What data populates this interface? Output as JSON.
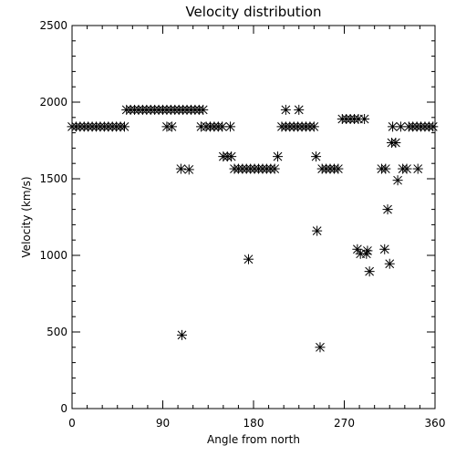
{
  "chart_data": {
    "type": "scatter",
    "title": "Velocity distribution",
    "xlabel": "Angle from north",
    "ylabel": "Velocity (km/s)",
    "xlim": [
      0,
      360
    ],
    "ylim": [
      0,
      2500
    ],
    "x_ticks": [
      0,
      90,
      180,
      270,
      360
    ],
    "y_ticks": [
      0,
      500,
      1000,
      1500,
      2000,
      2500
    ],
    "x_minor_step": 15,
    "y_minor_step": 100,
    "grid": false,
    "marker": "asterisk",
    "marker_color": "#000000",
    "axis_color": "#000000",
    "background_color": "#ffffff",
    "series": [
      {
        "points": [
          {
            "x": 0,
            "y": 1840
          },
          {
            "x": 4,
            "y": 1840
          },
          {
            "x": 8,
            "y": 1840
          },
          {
            "x": 12,
            "y": 1840
          },
          {
            "x": 16,
            "y": 1840
          },
          {
            "x": 20,
            "y": 1840
          },
          {
            "x": 24,
            "y": 1840
          },
          {
            "x": 28,
            "y": 1840
          },
          {
            "x": 32,
            "y": 1840
          },
          {
            "x": 36,
            "y": 1840
          },
          {
            "x": 40,
            "y": 1840
          },
          {
            "x": 44,
            "y": 1840
          },
          {
            "x": 48,
            "y": 1840
          },
          {
            "x": 52,
            "y": 1840
          },
          {
            "x": 54,
            "y": 1950
          },
          {
            "x": 58,
            "y": 1950
          },
          {
            "x": 62,
            "y": 1950
          },
          {
            "x": 66,
            "y": 1950
          },
          {
            "x": 70,
            "y": 1950
          },
          {
            "x": 74,
            "y": 1950
          },
          {
            "x": 78,
            "y": 1950
          },
          {
            "x": 82,
            "y": 1950
          },
          {
            "x": 86,
            "y": 1950
          },
          {
            "x": 90,
            "y": 1950
          },
          {
            "x": 94,
            "y": 1950
          },
          {
            "x": 98,
            "y": 1950
          },
          {
            "x": 102,
            "y": 1950
          },
          {
            "x": 106,
            "y": 1950
          },
          {
            "x": 110,
            "y": 1950
          },
          {
            "x": 114,
            "y": 1950
          },
          {
            "x": 118,
            "y": 1950
          },
          {
            "x": 122,
            "y": 1950
          },
          {
            "x": 126,
            "y": 1950
          },
          {
            "x": 130,
            "y": 1950
          },
          {
            "x": 94,
            "y": 1840
          },
          {
            "x": 99,
            "y": 1840
          },
          {
            "x": 128,
            "y": 1840
          },
          {
            "x": 133,
            "y": 1840
          },
          {
            "x": 137,
            "y": 1840
          },
          {
            "x": 141,
            "y": 1840
          },
          {
            "x": 145,
            "y": 1840
          },
          {
            "x": 149,
            "y": 1840
          },
          {
            "x": 157,
            "y": 1840
          },
          {
            "x": 108,
            "y": 1565
          },
          {
            "x": 116,
            "y": 1560
          },
          {
            "x": 109,
            "y": 480
          },
          {
            "x": 150,
            "y": 1645
          },
          {
            "x": 154,
            "y": 1645
          },
          {
            "x": 158,
            "y": 1645
          },
          {
            "x": 161,
            "y": 1565
          },
          {
            "x": 165,
            "y": 1565
          },
          {
            "x": 169,
            "y": 1565
          },
          {
            "x": 173,
            "y": 1565
          },
          {
            "x": 177,
            "y": 1565
          },
          {
            "x": 181,
            "y": 1565
          },
          {
            "x": 185,
            "y": 1565
          },
          {
            "x": 189,
            "y": 1565
          },
          {
            "x": 193,
            "y": 1565
          },
          {
            "x": 197,
            "y": 1565
          },
          {
            "x": 201,
            "y": 1565
          },
          {
            "x": 175,
            "y": 975
          },
          {
            "x": 204,
            "y": 1645
          },
          {
            "x": 208,
            "y": 1840
          },
          {
            "x": 212,
            "y": 1840
          },
          {
            "x": 216,
            "y": 1840
          },
          {
            "x": 220,
            "y": 1840
          },
          {
            "x": 224,
            "y": 1840
          },
          {
            "x": 228,
            "y": 1840
          },
          {
            "x": 232,
            "y": 1840
          },
          {
            "x": 236,
            "y": 1840
          },
          {
            "x": 240,
            "y": 1840
          },
          {
            "x": 212,
            "y": 1950
          },
          {
            "x": 225,
            "y": 1950
          },
          {
            "x": 242,
            "y": 1645
          },
          {
            "x": 243,
            "y": 1160
          },
          {
            "x": 246,
            "y": 400
          },
          {
            "x": 248,
            "y": 1565
          },
          {
            "x": 252,
            "y": 1565
          },
          {
            "x": 256,
            "y": 1565
          },
          {
            "x": 260,
            "y": 1565
          },
          {
            "x": 264,
            "y": 1565
          },
          {
            "x": 268,
            "y": 1890
          },
          {
            "x": 272,
            "y": 1890
          },
          {
            "x": 276,
            "y": 1890
          },
          {
            "x": 280,
            "y": 1890
          },
          {
            "x": 284,
            "y": 1890
          },
          {
            "x": 290,
            "y": 1890
          },
          {
            "x": 283,
            "y": 1040
          },
          {
            "x": 286,
            "y": 1010
          },
          {
            "x": 292,
            "y": 1010
          },
          {
            "x": 293,
            "y": 1030
          },
          {
            "x": 295,
            "y": 895
          },
          {
            "x": 307,
            "y": 1565
          },
          {
            "x": 311,
            "y": 1565
          },
          {
            "x": 310,
            "y": 1040
          },
          {
            "x": 313,
            "y": 1300
          },
          {
            "x": 315,
            "y": 945
          },
          {
            "x": 317,
            "y": 1735
          },
          {
            "x": 321,
            "y": 1735
          },
          {
            "x": 318,
            "y": 1840
          },
          {
            "x": 326,
            "y": 1840
          },
          {
            "x": 334,
            "y": 1840
          },
          {
            "x": 338,
            "y": 1840
          },
          {
            "x": 342,
            "y": 1840
          },
          {
            "x": 346,
            "y": 1840
          },
          {
            "x": 350,
            "y": 1840
          },
          {
            "x": 354,
            "y": 1840
          },
          {
            "x": 358,
            "y": 1840
          },
          {
            "x": 323,
            "y": 1490
          },
          {
            "x": 328,
            "y": 1565
          },
          {
            "x": 332,
            "y": 1565
          },
          {
            "x": 343,
            "y": 1565
          }
        ]
      }
    ]
  }
}
